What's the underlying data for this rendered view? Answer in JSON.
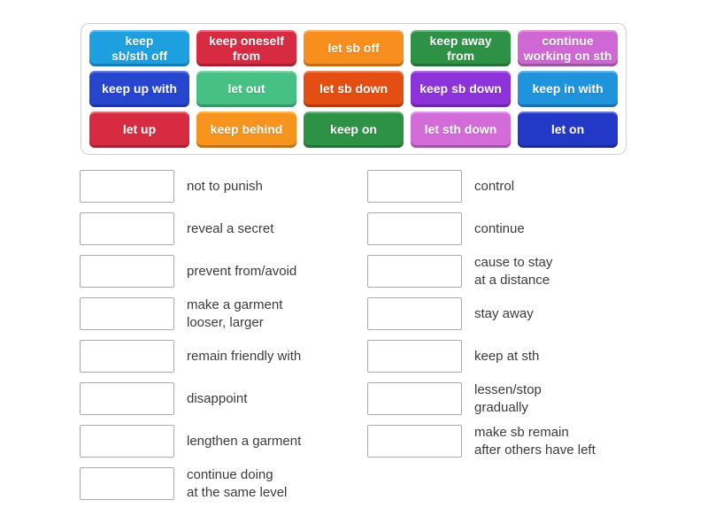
{
  "board": {
    "tiles": [
      {
        "label": "keep\nsb/sth off",
        "color": "#1e9fe0"
      },
      {
        "label": "keep oneself\nfrom",
        "color": "#d62b41"
      },
      {
        "label": "let sb off",
        "color": "#f78e1e"
      },
      {
        "label": "keep away\nfrom",
        "color": "#2d9245"
      },
      {
        "label": "continue\nworking on sth",
        "color": "#cf68d4"
      },
      {
        "label": "keep up with",
        "color": "#2746cf"
      },
      {
        "label": "let out",
        "color": "#47c085"
      },
      {
        "label": "let sb down",
        "color": "#e54e12"
      },
      {
        "label": "keep sb down",
        "color": "#8c34d9"
      },
      {
        "label": "keep in with",
        "color": "#2093dd"
      },
      {
        "label": "let up",
        "color": "#d62b41"
      },
      {
        "label": "keep behind",
        "color": "#f7941e"
      },
      {
        "label": "keep on",
        "color": "#2d9245"
      },
      {
        "label": "let sth down",
        "color": "#d36bd8"
      },
      {
        "label": "let on",
        "color": "#2338c6"
      }
    ]
  },
  "definitions": {
    "left": [
      {
        "text": "not to punish"
      },
      {
        "text": "reveal a secret"
      },
      {
        "text": "prevent from/avoid"
      },
      {
        "text": "make a garment\nlooser, larger"
      },
      {
        "text": "remain friendly with"
      },
      {
        "text": "disappoint"
      },
      {
        "text": "lengthen a garment"
      },
      {
        "text": "continue doing\nat the same level"
      }
    ],
    "right": [
      {
        "text": "control"
      },
      {
        "text": "continue"
      },
      {
        "text": "cause to stay\nat a distance"
      },
      {
        "text": "stay away"
      },
      {
        "text": "keep at sth"
      },
      {
        "text": "lessen/stop\ngradually"
      },
      {
        "text": "make sb remain\nafter others have left"
      }
    ]
  }
}
